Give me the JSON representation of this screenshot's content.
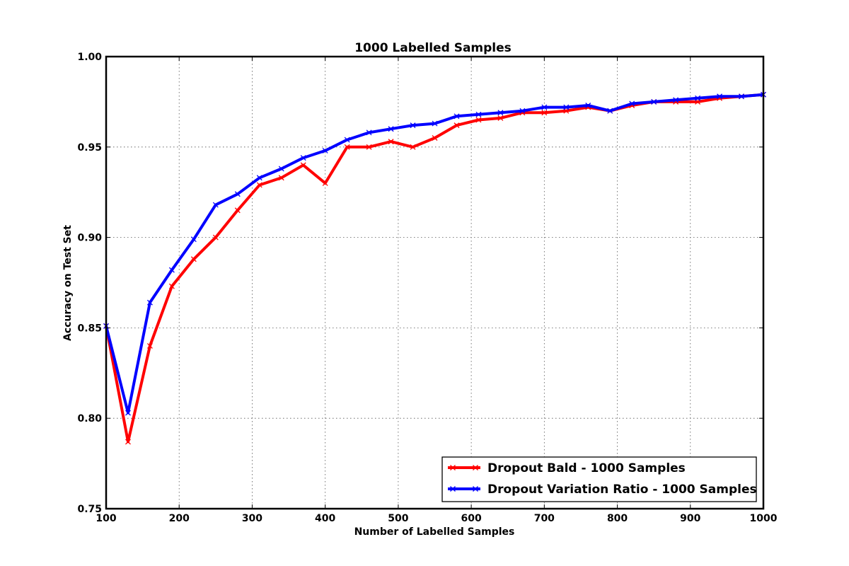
{
  "chart_data": {
    "type": "line",
    "title": "1000 Labelled Samples",
    "xlabel": "Number of Labelled Samples",
    "ylabel": "Accuracy on Test Set",
    "xlim": [
      100,
      1000
    ],
    "ylim": [
      0.75,
      1.0
    ],
    "x_ticks": [
      100,
      200,
      300,
      400,
      500,
      600,
      700,
      800,
      900,
      1000
    ],
    "y_ticks": [
      0.75,
      0.8,
      0.85,
      0.9,
      0.95,
      1.0
    ],
    "y_tick_labels": [
      "0.75",
      "0.80",
      "0.85",
      "0.90",
      "0.95",
      "1.00"
    ],
    "grid": true,
    "legend_position": "lower-right",
    "x": [
      100,
      130,
      160,
      190,
      220,
      250,
      280,
      310,
      340,
      370,
      400,
      430,
      460,
      490,
      520,
      550,
      580,
      610,
      640,
      670,
      700,
      730,
      760,
      790,
      820,
      850,
      880,
      910,
      940,
      970,
      1000
    ],
    "series": [
      {
        "name": "Dropout Bald - 1000 Samples",
        "color": "#ff0000",
        "marker": "x",
        "values": [
          0.851,
          0.787,
          0.84,
          0.873,
          0.888,
          0.9,
          0.915,
          0.929,
          0.933,
          0.94,
          0.93,
          0.95,
          0.95,
          0.953,
          0.95,
          0.955,
          0.962,
          0.965,
          0.966,
          0.969,
          0.969,
          0.97,
          0.972,
          0.97,
          0.973,
          0.975,
          0.975,
          0.975,
          0.977,
          0.978,
          0.979
        ]
      },
      {
        "name": "Dropout Variation Ratio - 1000 Samples",
        "color": "#0000ff",
        "marker": "x",
        "values": [
          0.851,
          0.803,
          0.864,
          0.882,
          0.899,
          0.918,
          0.924,
          0.933,
          0.938,
          0.944,
          0.948,
          0.954,
          0.958,
          0.96,
          0.962,
          0.963,
          0.967,
          0.968,
          0.969,
          0.97,
          0.972,
          0.972,
          0.973,
          0.97,
          0.974,
          0.975,
          0.976,
          0.977,
          0.978,
          0.978,
          0.979
        ]
      }
    ]
  }
}
